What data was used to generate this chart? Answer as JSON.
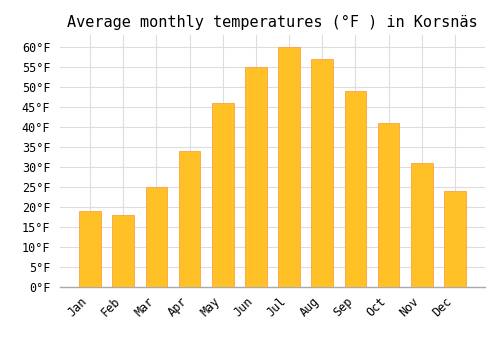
{
  "title": "Average monthly temperatures (°F ) in Korsnäs",
  "months": [
    "Jan",
    "Feb",
    "Mar",
    "Apr",
    "May",
    "Jun",
    "Jul",
    "Aug",
    "Sep",
    "Oct",
    "Nov",
    "Dec"
  ],
  "values": [
    19,
    18,
    25,
    34,
    46,
    55,
    60,
    57,
    49,
    41,
    31,
    24
  ],
  "bar_color": "#FFC125",
  "bar_edge_color": "#FFA040",
  "background_color": "#FFFFFF",
  "grid_color": "#DDDDDD",
  "ylim": [
    0,
    63
  ],
  "yticks": [
    0,
    5,
    10,
    15,
    20,
    25,
    30,
    35,
    40,
    45,
    50,
    55,
    60
  ],
  "ylabel_suffix": "°F",
  "title_fontsize": 11,
  "tick_fontsize": 8.5,
  "font_family": "monospace",
  "bar_width": 0.65
}
